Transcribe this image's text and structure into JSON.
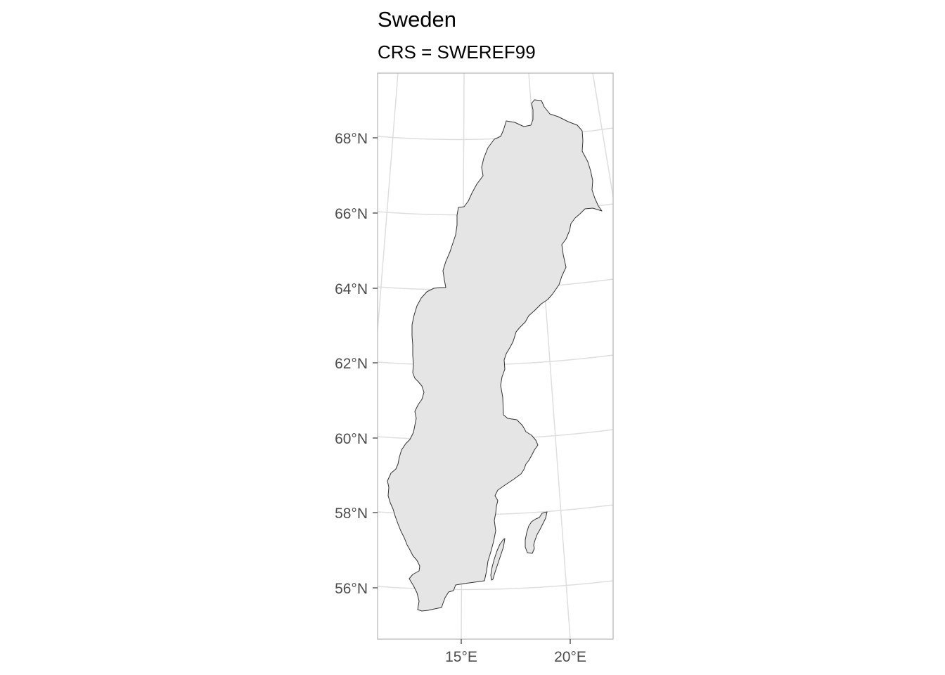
{
  "title": "Sweden",
  "subtitle": "CRS = SWEREF99",
  "colors": {
    "land_fill": "#e5e5e5",
    "land_stroke": "#333333",
    "grid": "#dedede",
    "panel_border": "#b3b3b3",
    "axis_text": "#4d4d4d",
    "background": "#ffffff"
  },
  "axes": {
    "y_labels": [
      "68°N",
      "66°N",
      "64°N",
      "62°N",
      "60°N",
      "58°N",
      "56°N"
    ],
    "x_labels": [
      "15°E",
      "20°E"
    ]
  },
  "features": [
    {
      "name": "Sweden mainland"
    },
    {
      "name": "Gotland"
    },
    {
      "name": "Öland"
    }
  ]
}
